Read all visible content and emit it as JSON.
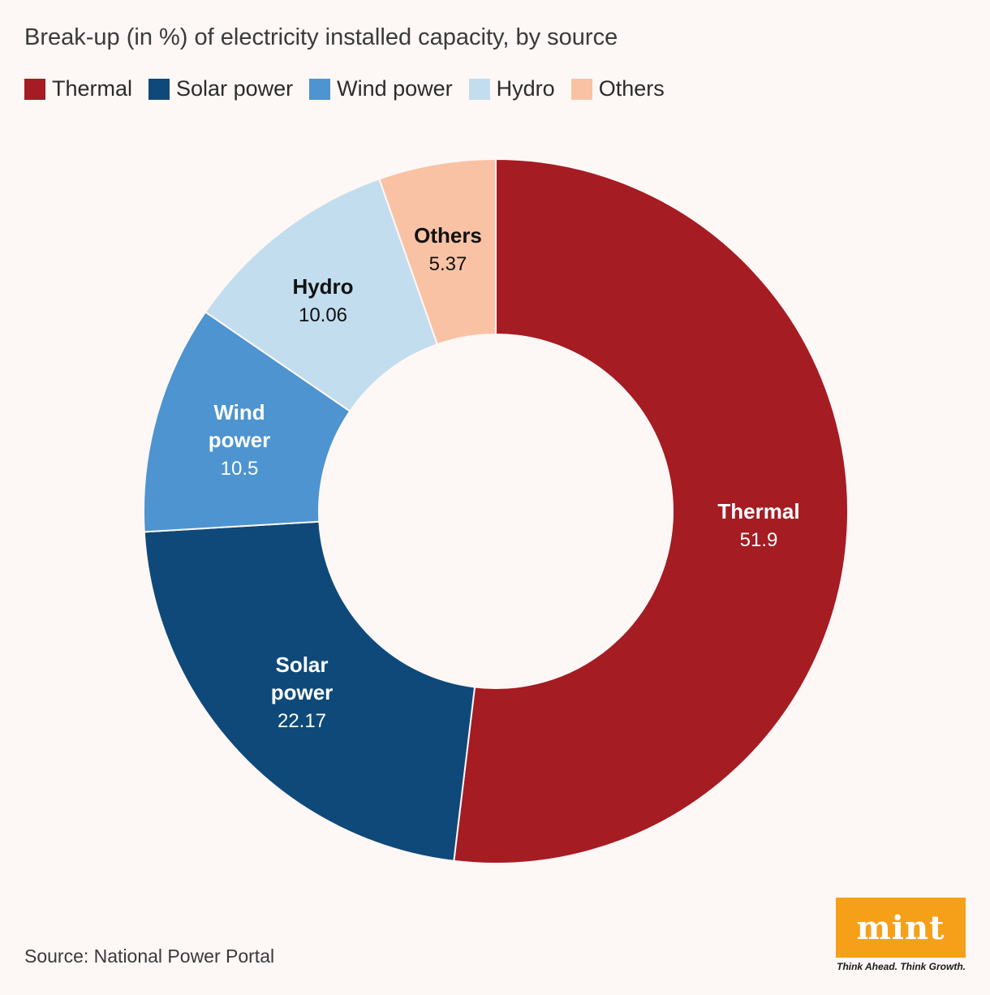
{
  "title": "Break-up (in %) of electricity installed capacity, by source",
  "legend": [
    {
      "label": "Thermal",
      "color": "#a51c23"
    },
    {
      "label": "Solar power",
      "color": "#0e497a"
    },
    {
      "label": "Wind power",
      "color": "#4d94d0"
    },
    {
      "label": "Hydro",
      "color": "#c2ddee"
    },
    {
      "label": "Others",
      "color": "#fac2a4"
    }
  ],
  "chart_data": {
    "type": "pie",
    "title": "Break-up (in %) of electricity installed capacity, by source",
    "labels": [
      "Thermal",
      "Solar power",
      "Wind power",
      "Hydro",
      "Others"
    ],
    "values": [
      51.9,
      22.17,
      10.5,
      10.06,
      5.37
    ],
    "value_labels": [
      "51.9",
      "22.17",
      "10.5",
      "10.06",
      "5.37"
    ],
    "colors": [
      "#a51c23",
      "#0e497a",
      "#4d94d0",
      "#c2ddee",
      "#fac2a4"
    ],
    "donut": true,
    "legend": "top-left"
  },
  "source": "Source: National Power Portal",
  "logo": {
    "word": "mint",
    "tagline": "Think Ahead. Think Growth.",
    "color": "#f6a019"
  }
}
